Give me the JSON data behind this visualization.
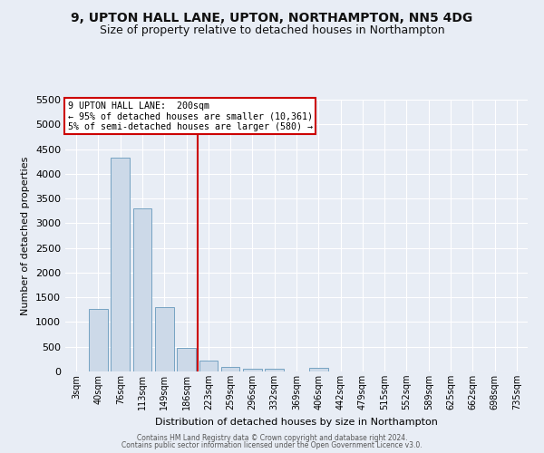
{
  "title": "9, UPTON HALL LANE, UPTON, NORTHAMPTON, NN5 4DG",
  "subtitle": "Size of property relative to detached houses in Northampton",
  "xlabel": "Distribution of detached houses by size in Northampton",
  "ylabel": "Number of detached properties",
  "bar_color": "#ccd9e8",
  "bar_edge_color": "#6699bb",
  "categories": [
    "3sqm",
    "40sqm",
    "76sqm",
    "113sqm",
    "149sqm",
    "186sqm",
    "223sqm",
    "259sqm",
    "296sqm",
    "332sqm",
    "369sqm",
    "406sqm",
    "442sqm",
    "479sqm",
    "515sqm",
    "552sqm",
    "589sqm",
    "625sqm",
    "662sqm",
    "698sqm",
    "735sqm"
  ],
  "values": [
    0,
    1270,
    4330,
    3300,
    1300,
    480,
    220,
    95,
    60,
    50,
    0,
    70,
    0,
    0,
    0,
    0,
    0,
    0,
    0,
    0,
    0
  ],
  "red_line_x": 5.5,
  "red_line_label": "9 UPTON HALL LANE:  200sqm",
  "annotation_line1": "← 95% of detached houses are smaller (10,361)",
  "annotation_line2": "5% of semi-detached houses are larger (580) →",
  "ylim": [
    0,
    5500
  ],
  "yticks": [
    0,
    500,
    1000,
    1500,
    2000,
    2500,
    3000,
    3500,
    4000,
    4500,
    5000,
    5500
  ],
  "footnote1": "Contains HM Land Registry data © Crown copyright and database right 2024.",
  "footnote2": "Contains public sector information licensed under the Open Government Licence v3.0.",
  "bg_color": "#e8edf5",
  "plot_bg_color": "#e8edf5",
  "grid_color": "#ffffff",
  "title_fontsize": 10,
  "subtitle_fontsize": 9,
  "annotation_box_color": "#ffffff",
  "annotation_box_edge": "#cc0000"
}
